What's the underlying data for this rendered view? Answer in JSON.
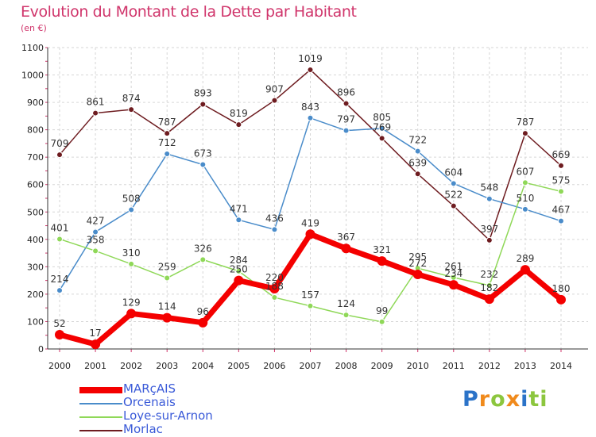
{
  "chart_data": {
    "type": "line",
    "title": "Evolution du Montant de la Dette par Habitant",
    "unit_label": "(en €)",
    "x": [
      "2000",
      "2001",
      "2002",
      "2003",
      "2004",
      "2005",
      "2006",
      "2007",
      "2008",
      "2009",
      "2010",
      "2011",
      "2012",
      "2013",
      "2014"
    ],
    "ylim": [
      0,
      1100
    ],
    "yticks": [
      0,
      100,
      200,
      300,
      400,
      500,
      600,
      700,
      800,
      900,
      1000,
      1100
    ],
    "grid": true,
    "legend_position": "bottom-left",
    "series": [
      {
        "name": "Morlac",
        "color": "#6e1c20",
        "width": 1.5,
        "values": [
          709,
          861,
          874,
          787,
          893,
          819,
          907,
          1019,
          896,
          769,
          639,
          522,
          397,
          787,
          669
        ]
      },
      {
        "name": "Orcenais",
        "color": "#4a8cca",
        "width": 1.5,
        "values": [
          214,
          427,
          508,
          712,
          673,
          471,
          436,
          843,
          797,
          805,
          722,
          604,
          548,
          510,
          467
        ]
      },
      {
        "name": "Loye-sur-Arnon",
        "color": "#8fd858",
        "width": 1.5,
        "values": [
          401,
          358,
          310,
          259,
          326,
          284,
          188,
          157,
          124,
          99,
          295,
          261,
          232,
          607,
          575
        ]
      },
      {
        "name": "MARçAIS",
        "color": "#f40000",
        "width": 7,
        "values": [
          52,
          17,
          129,
          114,
          96,
          250,
          220,
          419,
          367,
          321,
          272,
          234,
          182,
          289,
          180
        ]
      }
    ]
  },
  "legend": {
    "items": [
      {
        "label": "MARçAIS",
        "color": "#f40000"
      },
      {
        "label": "Orcenais",
        "color": "#4a8cca"
      },
      {
        "label": "Loye-sur-Arnon",
        "color": "#8fd858"
      },
      {
        "label": "Morlac",
        "color": "#6e1c20"
      }
    ]
  },
  "logo": {
    "text": "Proxiti",
    "letters": [
      "P",
      "r",
      "o",
      "x",
      "i",
      "ti"
    ]
  }
}
